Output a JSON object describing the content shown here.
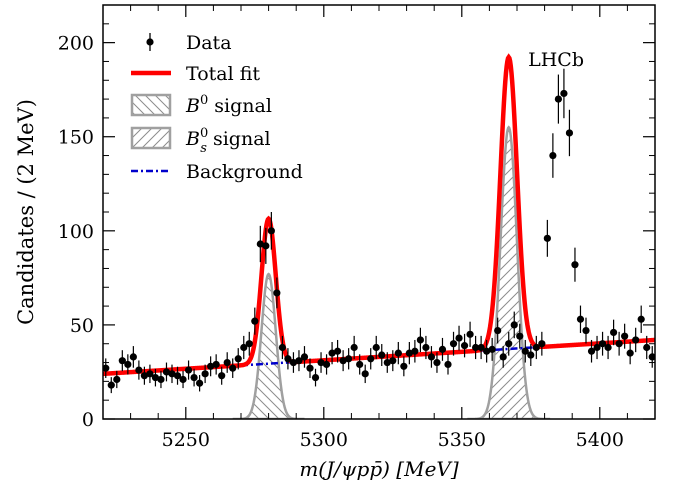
{
  "chart_data": {
    "type": "scatter",
    "title": "",
    "watermark": "LHCb",
    "xlabel": "m(J/ψpp̄) [MeV]",
    "ylabel": "Candidates / (2 MeV)",
    "xlim": [
      5220,
      5420
    ],
    "ylim": [
      0,
      220
    ],
    "xticks": [
      5250,
      5300,
      5350,
      5400
    ],
    "yticks": [
      0,
      50,
      100,
      150,
      200
    ],
    "legend_position": "top-left",
    "legend": [
      {
        "label": "Data",
        "style": "points"
      },
      {
        "label": "Total fit",
        "style": "line",
        "color": "#ff0000"
      },
      {
        "label": "B0 signal",
        "style": "hatch-back",
        "base": "B",
        "sup": "0",
        "sub": "",
        "text": " signal"
      },
      {
        "label": "Bs0 signal",
        "style": "hatch-forward",
        "base": "B",
        "sup": "0",
        "sub": "s",
        "text": " signal"
      },
      {
        "label": "Background",
        "style": "dashdot",
        "color": "#0000cc"
      }
    ],
    "components": {
      "background": {
        "intercept_5220": 24.0,
        "slope_per_mev": 0.09
      },
      "b0_signal": {
        "mean": 5280,
        "sigma": 2.6,
        "peak": 77
      },
      "bs0_signal": {
        "mean": 5367,
        "sigma": 3.0,
        "peak": 155
      }
    },
    "series": [
      {
        "name": "Data",
        "x": [
          5221,
          5223,
          5225,
          5227,
          5229,
          5231,
          5233,
          5235,
          5237,
          5239,
          5241,
          5243,
          5245,
          5247,
          5249,
          5251,
          5253,
          5255,
          5257,
          5259,
          5261,
          5263,
          5265,
          5267,
          5269,
          5271,
          5273,
          5275,
          5277,
          5279,
          5281,
          5283,
          5285,
          5287,
          5289,
          5291,
          5293,
          5295,
          5297,
          5299,
          5301,
          5303,
          5305,
          5307,
          5309,
          5311,
          5313,
          5315,
          5317,
          5319,
          5321,
          5323,
          5325,
          5327,
          5329,
          5331,
          5333,
          5335,
          5337,
          5339,
          5341,
          5343,
          5345,
          5347,
          5349,
          5351,
          5353,
          5355,
          5357,
          5359,
          5361,
          5363,
          5365,
          5367,
          5369,
          5371,
          5373,
          5375,
          5377,
          5379,
          5381,
          5383,
          5385,
          5387,
          5389,
          5391,
          5393,
          5395,
          5397,
          5399,
          5401,
          5403,
          5405,
          5407,
          5409,
          5411,
          5413,
          5415,
          5417,
          5419
        ],
        "y": [
          27,
          18,
          21,
          31,
          29,
          33,
          26,
          23,
          24,
          22,
          21,
          25,
          24,
          23,
          21,
          26,
          22,
          19,
          24,
          28,
          29,
          23,
          30,
          27,
          32,
          38,
          40,
          52,
          93,
          92,
          100,
          67,
          38,
          32,
          30,
          31,
          33,
          27,
          22,
          30,
          29,
          35,
          36,
          31,
          32,
          38,
          29,
          24,
          32,
          38,
          34,
          30,
          31,
          35,
          28,
          35,
          36,
          42,
          38,
          33,
          30,
          37,
          29,
          40,
          43,
          39,
          45,
          38,
          38,
          36,
          37,
          47,
          33,
          40,
          50,
          44,
          36,
          34,
          38,
          40,
          96,
          140,
          170,
          173,
          152,
          82,
          53,
          47,
          36,
          38,
          40,
          38,
          46,
          40,
          44,
          35,
          42,
          53,
          38,
          33
        ]
      }
    ]
  }
}
